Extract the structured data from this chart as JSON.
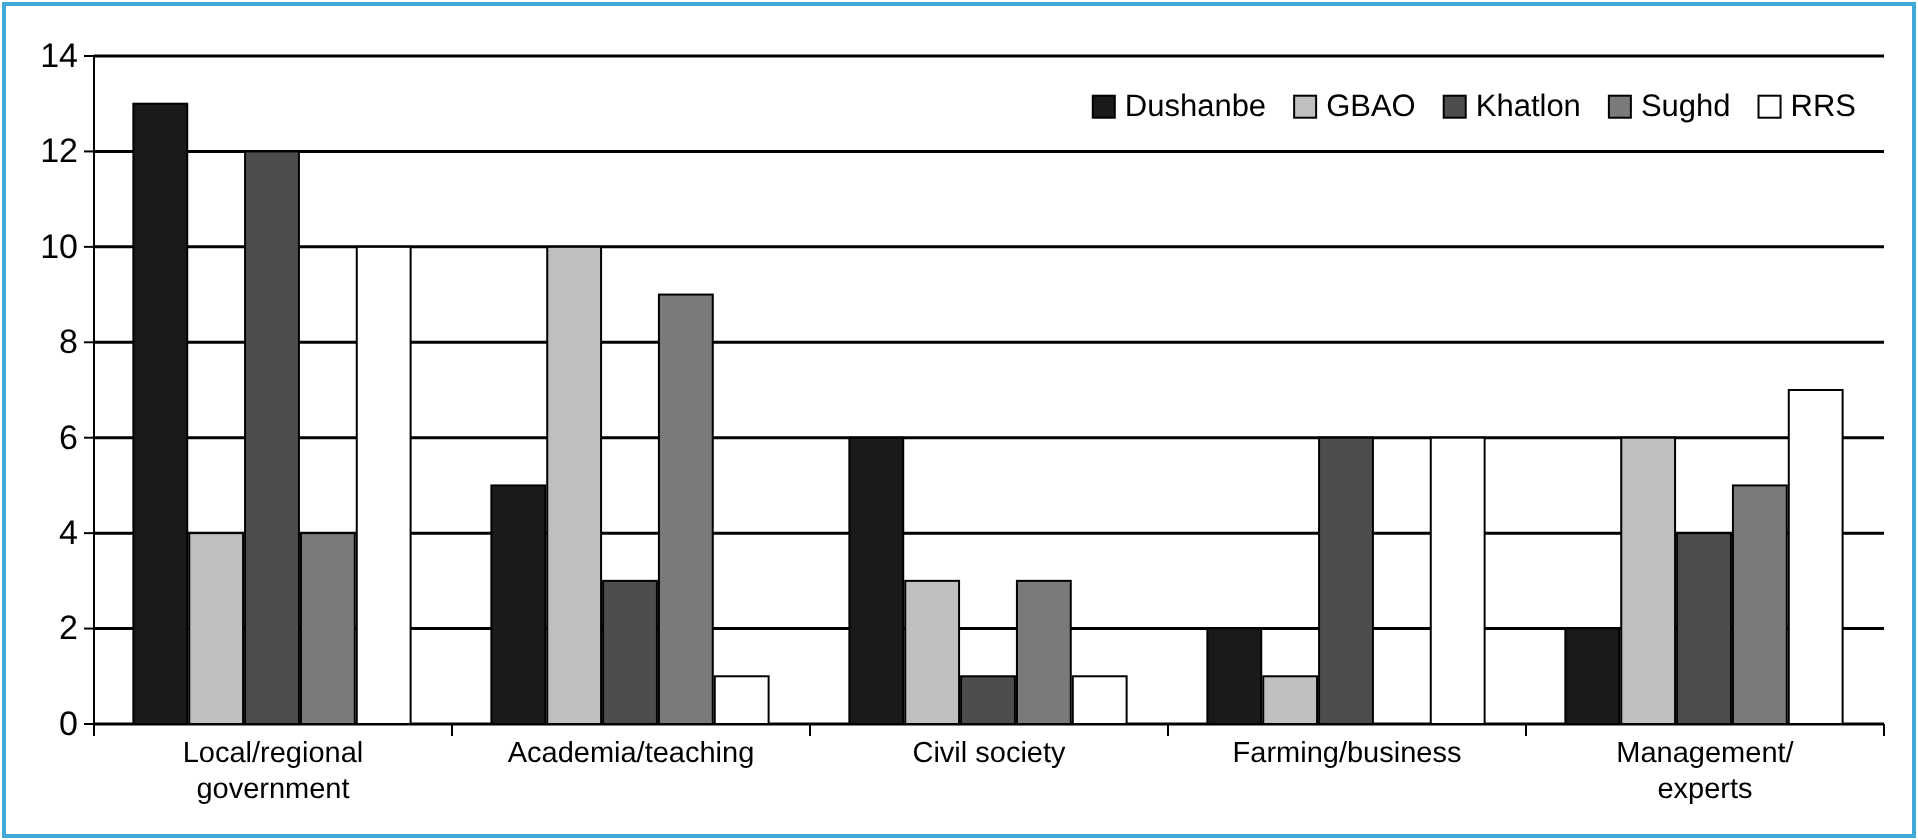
{
  "chart_data": {
    "type": "bar",
    "categories": [
      "Local/regional government",
      "Academia/teaching",
      "Civil society",
      "Farming/business",
      "Management/ experts"
    ],
    "series": [
      {
        "name": "Dushanbe",
        "color": "#1a1a1a",
        "values": [
          13,
          5,
          6,
          2,
          2
        ]
      },
      {
        "name": "GBAO",
        "color": "#bfbfbf",
        "values": [
          4,
          10,
          3,
          1,
          6
        ]
      },
      {
        "name": "Khatlon",
        "color": "#4d4d4d",
        "values": [
          12,
          3,
          1,
          6,
          4
        ]
      },
      {
        "name": "Sughd",
        "color": "#7a7a7a",
        "values": [
          4,
          9,
          3,
          0,
          5
        ]
      },
      {
        "name": "RRS",
        "color": "#ffffff",
        "values": [
          10,
          1,
          1,
          6,
          7
        ]
      }
    ],
    "ylim": [
      0,
      14
    ],
    "yticks": [
      0,
      2,
      4,
      6,
      8,
      10,
      12,
      14
    ],
    "grid": "y",
    "legend": "top right"
  }
}
